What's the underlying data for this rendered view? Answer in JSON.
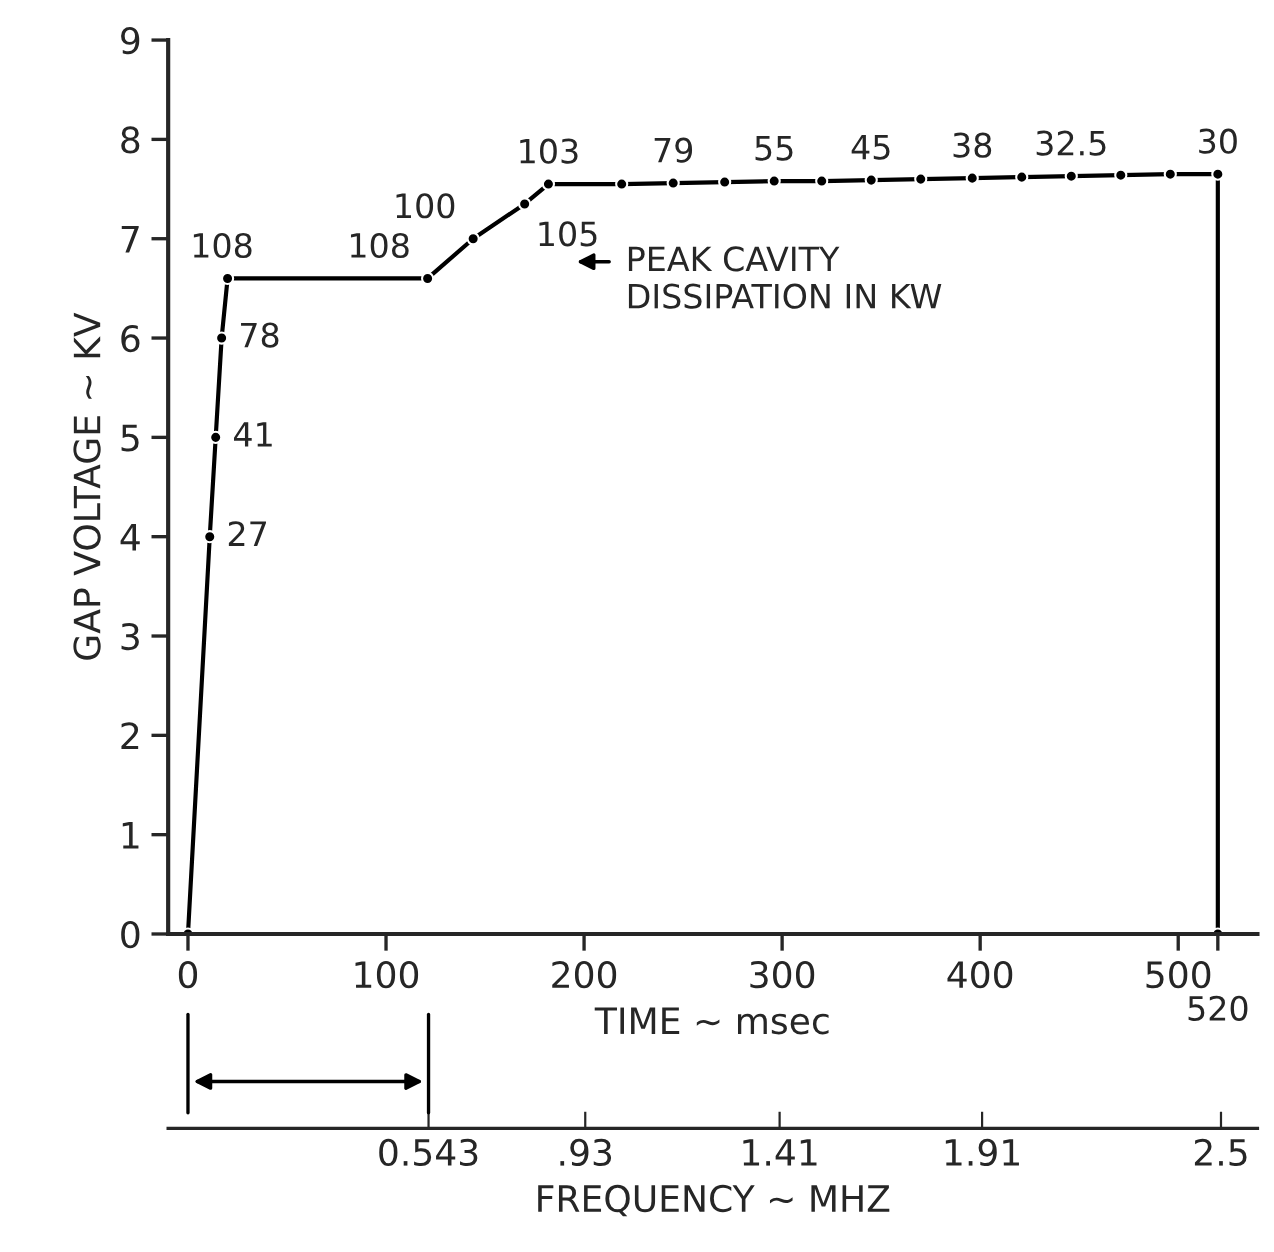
{
  "chart_data": {
    "type": "line",
    "xlabel": "TIME ~ msec",
    "ylabel": "GAP VOLTAGE ~ KV",
    "x2label": "FREQUENCY ~ MHZ",
    "x": [
      0,
      11,
      14,
      17,
      20,
      121,
      144,
      170,
      182,
      219,
      245,
      271,
      296,
      320,
      345,
      370,
      396,
      421,
      446,
      471,
      496,
      520,
      520
    ],
    "series": [
      {
        "color": "#000000",
        "values": [
          0,
          4,
          5,
          6,
          6.6,
          6.6,
          7.0,
          7.35,
          7.55,
          7.55,
          7.56,
          7.57,
          7.58,
          7.58,
          7.59,
          7.6,
          7.61,
          7.62,
          7.63,
          7.64,
          7.65,
          7.65,
          0
        ]
      }
    ],
    "xlim": [
      -10,
      540
    ],
    "xticks": [
      0,
      100,
      200,
      300,
      400,
      500,
      {
        "value": 520,
        "label": null
      }
    ],
    "ylim": [
      0,
      9
    ],
    "yticks": [
      0,
      1,
      2,
      3,
      4,
      5,
      6,
      7,
      8,
      9
    ],
    "x2lim": [
      -0.1,
      2.59
    ],
    "x2ticks": [
      {
        "value": 0.543,
        "label": "0.543"
      },
      {
        "value": 0.93,
        "label": ".93"
      },
      1.41,
      1.91,
      2.5
    ],
    "annotations": [
      {
        "text": "27",
        "x": 11,
        "y": 4
      },
      {
        "text": "41",
        "x": 14,
        "y": 5
      },
      {
        "text": "78",
        "x": 17,
        "y": 6
      },
      {
        "text": "108",
        "x": 20,
        "y": 6.6
      },
      {
        "text": "108",
        "x": 121,
        "y": 6.6
      },
      {
        "text": "100",
        "x": 144,
        "y": 7.0
      },
      {
        "text": "105",
        "x": 170,
        "y": 7.35
      },
      {
        "text": "103",
        "x": 182,
        "y": 7.55
      },
      {
        "text": "79",
        "x": 245,
        "y": 7.56
      },
      {
        "text": "55",
        "x": 296,
        "y": 7.58
      },
      {
        "text": "45",
        "x": 345,
        "y": 7.59
      },
      {
        "text": "38",
        "x": 396,
        "y": 7.61
      },
      {
        "text": "32.5",
        "x": 446,
        "y": 7.63
      },
      {
        "text": "30",
        "x": 520,
        "y": 7.65
      },
      {
        "text": "520",
        "x": 520,
        "y": 0
      },
      "PEAK CAVITY\nDISSIPATION IN KW"
    ],
    "marker": "circle",
    "line_style": "solid"
  }
}
